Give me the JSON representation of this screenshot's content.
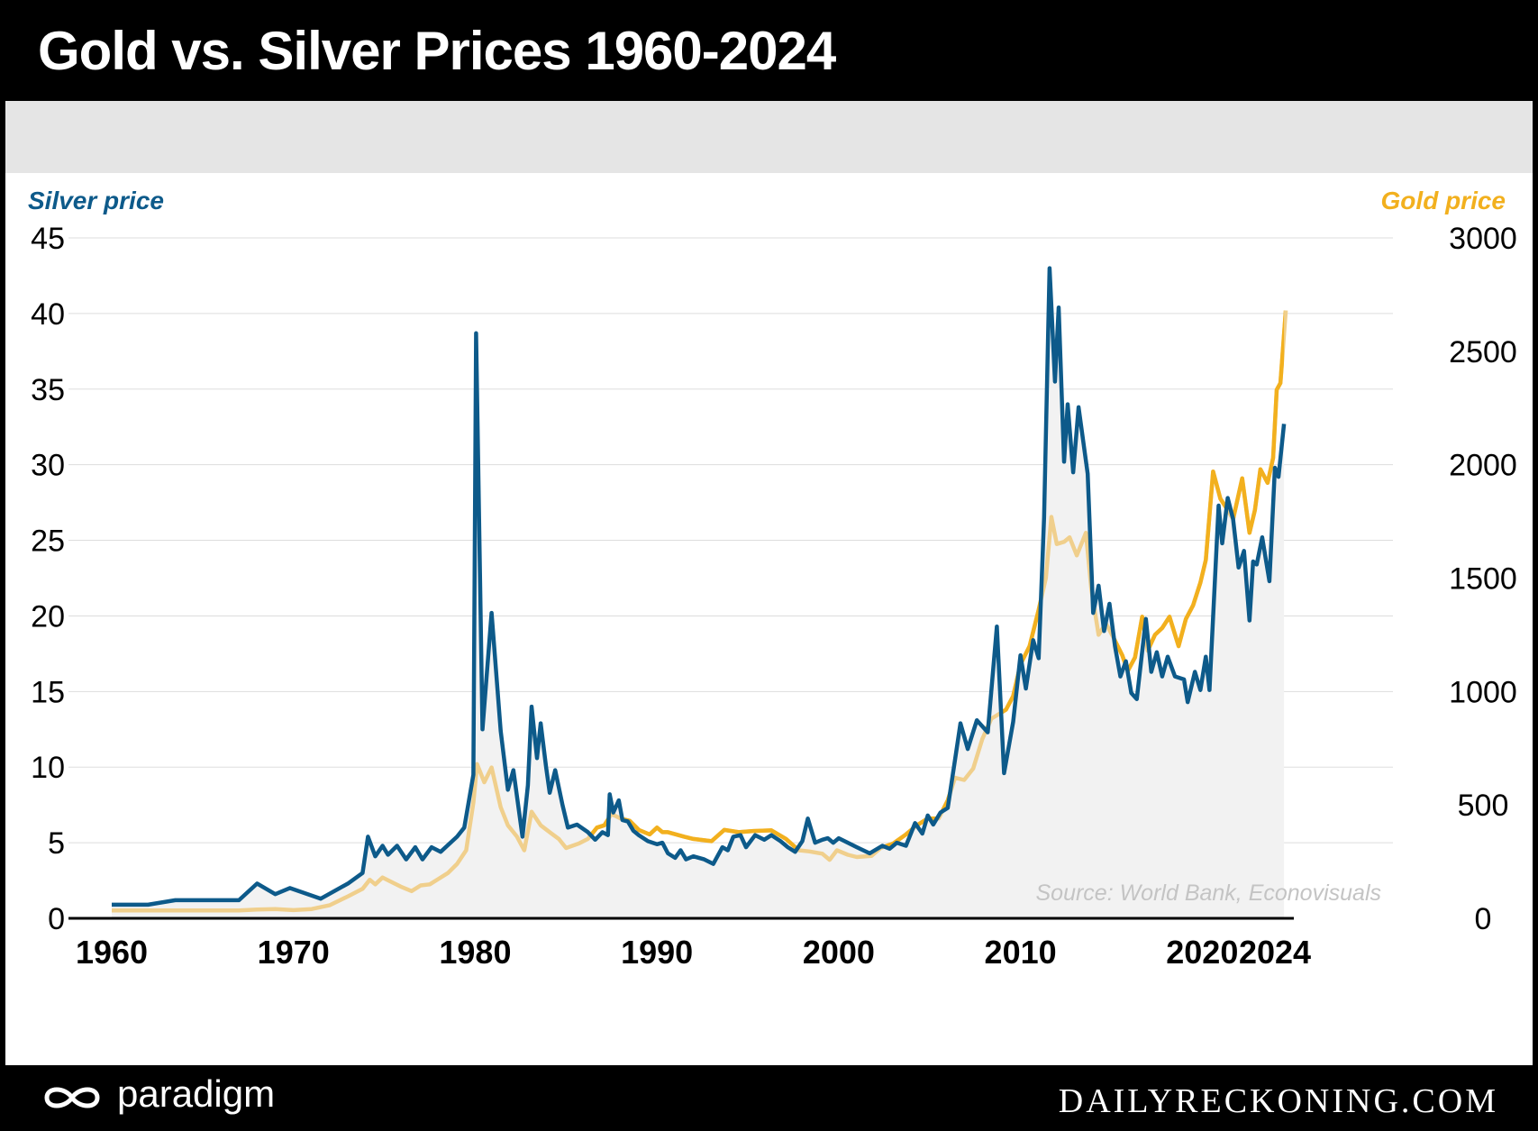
{
  "header": {
    "title": "Gold vs. Silver Prices 1960-2024"
  },
  "footer": {
    "brand": "paradigm",
    "site": "DAILYRECKONING.COM",
    "logo_icon": "infinity-loop-icon"
  },
  "colors": {
    "silver": "#0d5a8a",
    "gold": "#f2b01e",
    "gold_faded": "#f0cf8c",
    "area": "#f2f2f2",
    "grid": "#dddddd",
    "band": "#e5e5e5"
  },
  "chart_data": {
    "type": "line",
    "source": "Source: World Bank, Econovisuals",
    "y_left": {
      "label": "Silver price",
      "range": [
        0,
        45
      ],
      "ticks": [
        0,
        5,
        10,
        15,
        20,
        25,
        30,
        35,
        40,
        45
      ]
    },
    "y_right": {
      "label": "Gold price",
      "range": [
        0,
        3000
      ],
      "ticks": [
        0,
        500,
        1000,
        1500,
        2000,
        2500,
        3000
      ]
    },
    "x_axis": {
      "range": [
        1960,
        2024
      ],
      "ticks": [
        1960,
        1970,
        1980,
        1990,
        2000,
        2010,
        2020,
        2024
      ]
    },
    "grid": true,
    "series": [
      {
        "name": "Silver price",
        "axis": "left",
        "points": [
          [
            1960,
            0.9
          ],
          [
            1962,
            0.9
          ],
          [
            1963.5,
            1.2
          ],
          [
            1967,
            1.2
          ],
          [
            1968,
            2.3
          ],
          [
            1969,
            1.6
          ],
          [
            1969.8,
            2.0
          ],
          [
            1971.5,
            1.3
          ],
          [
            1973,
            2.3
          ],
          [
            1973.8,
            3.0
          ],
          [
            1974.1,
            5.4
          ],
          [
            1974.5,
            4.1
          ],
          [
            1974.9,
            4.8
          ],
          [
            1975.2,
            4.2
          ],
          [
            1975.7,
            4.8
          ],
          [
            1976.2,
            3.9
          ],
          [
            1976.7,
            4.7
          ],
          [
            1977.1,
            3.9
          ],
          [
            1977.6,
            4.7
          ],
          [
            1978.1,
            4.4
          ],
          [
            1979,
            5.4
          ],
          [
            1979.4,
            6.0
          ],
          [
            1979.9,
            9.5
          ],
          [
            1980.05,
            38.7
          ],
          [
            1980.4,
            12.5
          ],
          [
            1980.9,
            20.2
          ],
          [
            1981.4,
            12.4
          ],
          [
            1981.8,
            8.5
          ],
          [
            1982.1,
            9.8
          ],
          [
            1982.6,
            5.4
          ],
          [
            1982.9,
            8.8
          ],
          [
            1983.1,
            14.0
          ],
          [
            1983.4,
            10.6
          ],
          [
            1983.6,
            12.9
          ],
          [
            1983.9,
            10.0
          ],
          [
            1984.1,
            8.3
          ],
          [
            1984.4,
            9.8
          ],
          [
            1984.8,
            7.5
          ],
          [
            1985.1,
            6.0
          ],
          [
            1985.6,
            6.2
          ],
          [
            1986.2,
            5.7
          ],
          [
            1986.6,
            5.2
          ],
          [
            1987,
            5.7
          ],
          [
            1987.3,
            5.5
          ],
          [
            1987.4,
            8.2
          ],
          [
            1987.6,
            7.0
          ],
          [
            1987.9,
            7.8
          ],
          [
            1988.1,
            6.5
          ],
          [
            1988.4,
            6.4
          ],
          [
            1988.7,
            5.8
          ],
          [
            1989,
            5.5
          ],
          [
            1989.5,
            5.1
          ],
          [
            1990,
            4.9
          ],
          [
            1990.3,
            5.0
          ],
          [
            1990.6,
            4.3
          ],
          [
            1991,
            4.0
          ],
          [
            1991.3,
            4.5
          ],
          [
            1991.6,
            3.9
          ],
          [
            1992,
            4.1
          ],
          [
            1992.6,
            3.9
          ],
          [
            1993.1,
            3.6
          ],
          [
            1993.6,
            4.7
          ],
          [
            1993.9,
            4.5
          ],
          [
            1994.2,
            5.4
          ],
          [
            1994.6,
            5.5
          ],
          [
            1994.9,
            4.7
          ],
          [
            1995.4,
            5.5
          ],
          [
            1995.9,
            5.2
          ],
          [
            1996.3,
            5.5
          ],
          [
            1996.8,
            5.1
          ],
          [
            1997.2,
            4.7
          ],
          [
            1997.6,
            4.4
          ],
          [
            1998,
            5.1
          ],
          [
            1998.3,
            6.6
          ],
          [
            1998.7,
            5.0
          ],
          [
            1999.1,
            5.2
          ],
          [
            1999.4,
            5.3
          ],
          [
            1999.7,
            5.0
          ],
          [
            2000,
            5.3
          ],
          [
            2000.5,
            5.0
          ],
          [
            2001,
            4.7
          ],
          [
            2001.7,
            4.3
          ],
          [
            2002.4,
            4.8
          ],
          [
            2002.8,
            4.6
          ],
          [
            2003.2,
            5.0
          ],
          [
            2003.7,
            4.8
          ],
          [
            2004.2,
            6.3
          ],
          [
            2004.6,
            5.6
          ],
          [
            2004.9,
            6.8
          ],
          [
            2005.2,
            6.2
          ],
          [
            2005.6,
            7.0
          ],
          [
            2006,
            7.3
          ],
          [
            2006.4,
            10.5
          ],
          [
            2006.7,
            12.9
          ],
          [
            2007.1,
            11.2
          ],
          [
            2007.6,
            13.1
          ],
          [
            2008.2,
            12.3
          ],
          [
            2008.7,
            19.3
          ],
          [
            2009.1,
            9.6
          ],
          [
            2009.6,
            13.0
          ],
          [
            2010,
            17.4
          ],
          [
            2010.3,
            15.2
          ],
          [
            2010.7,
            18.4
          ],
          [
            2011,
            17.2
          ],
          [
            2011.3,
            26.5
          ],
          [
            2011.6,
            43.0
          ],
          [
            2011.9,
            35.5
          ],
          [
            2012.1,
            40.4
          ],
          [
            2012.4,
            30.2
          ],
          [
            2012.6,
            34.0
          ],
          [
            2012.9,
            29.5
          ],
          [
            2013.2,
            33.8
          ],
          [
            2013.7,
            29.4
          ],
          [
            2014,
            20.2
          ],
          [
            2014.3,
            22.0
          ],
          [
            2014.6,
            19.0
          ],
          [
            2014.9,
            20.8
          ],
          [
            2015.2,
            18.0
          ],
          [
            2015.5,
            16.0
          ],
          [
            2015.8,
            17.0
          ],
          [
            2016.1,
            14.9
          ],
          [
            2016.4,
            14.5
          ],
          [
            2016.9,
            19.8
          ],
          [
            2017.2,
            16.3
          ],
          [
            2017.5,
            17.6
          ],
          [
            2017.8,
            16.0
          ],
          [
            2018.1,
            17.3
          ],
          [
            2018.5,
            16.0
          ],
          [
            2019,
            15.8
          ],
          [
            2019.2,
            14.3
          ],
          [
            2019.6,
            16.3
          ],
          [
            2019.9,
            15.1
          ],
          [
            2020.2,
            17.3
          ],
          [
            2020.4,
            15.1
          ],
          [
            2020.9,
            27.3
          ],
          [
            2021.1,
            24.8
          ],
          [
            2021.4,
            27.8
          ],
          [
            2021.7,
            26.4
          ],
          [
            2022,
            23.2
          ],
          [
            2022.3,
            24.3
          ],
          [
            2022.6,
            19.7
          ],
          [
            2022.8,
            23.6
          ],
          [
            2023,
            23.4
          ],
          [
            2023.3,
            25.2
          ],
          [
            2023.7,
            22.3
          ],
          [
            2024,
            29.8
          ],
          [
            2024.2,
            29.2
          ],
          [
            2024.5,
            32.7
          ]
        ]
      },
      {
        "name": "Gold price",
        "axis": "right",
        "points": [
          [
            1960,
            35
          ],
          [
            1967,
            35
          ],
          [
            1968,
            39
          ],
          [
            1969,
            41
          ],
          [
            1970,
            36
          ],
          [
            1971,
            41
          ],
          [
            1972,
            58
          ],
          [
            1973,
            97
          ],
          [
            1973.8,
            130
          ],
          [
            1974.2,
            170
          ],
          [
            1974.5,
            150
          ],
          [
            1974.9,
            180
          ],
          [
            1975.4,
            160
          ],
          [
            1975.9,
            140
          ],
          [
            1976.5,
            120
          ],
          [
            1977,
            145
          ],
          [
            1977.5,
            150
          ],
          [
            1978,
            175
          ],
          [
            1978.5,
            200
          ],
          [
            1979,
            240
          ],
          [
            1979.5,
            300
          ],
          [
            1979.9,
            510
          ],
          [
            1980.1,
            680
          ],
          [
            1980.5,
            600
          ],
          [
            1980.9,
            665
          ],
          [
            1981.4,
            490
          ],
          [
            1981.8,
            410
          ],
          [
            1982.3,
            360
          ],
          [
            1982.7,
            300
          ],
          [
            1983.1,
            470
          ],
          [
            1983.6,
            410
          ],
          [
            1984.1,
            380
          ],
          [
            1984.6,
            350
          ],
          [
            1985,
            310
          ],
          [
            1985.7,
            330
          ],
          [
            1986.2,
            350
          ],
          [
            1986.7,
            400
          ],
          [
            1987.1,
            410
          ],
          [
            1987.5,
            460
          ],
          [
            1988,
            440
          ],
          [
            1988.5,
            430
          ],
          [
            1989,
            390
          ],
          [
            1989.6,
            370
          ],
          [
            1990,
            400
          ],
          [
            1990.3,
            380
          ],
          [
            1990.6,
            380
          ],
          [
            1991.5,
            360
          ],
          [
            1992,
            350
          ],
          [
            1993,
            340
          ],
          [
            1993.7,
            390
          ],
          [
            1994.5,
            380
          ],
          [
            1995.3,
            385
          ],
          [
            1996.3,
            388
          ],
          [
            1997.1,
            350
          ],
          [
            1997.8,
            300
          ],
          [
            1998.4,
            295
          ],
          [
            1999.1,
            285
          ],
          [
            1999.5,
            258
          ],
          [
            1999.9,
            300
          ],
          [
            2000.5,
            280
          ],
          [
            2001,
            270
          ],
          [
            2001.8,
            275
          ],
          [
            2002.3,
            310
          ],
          [
            2003,
            330
          ],
          [
            2003.7,
            370
          ],
          [
            2004.3,
            410
          ],
          [
            2004.9,
            440
          ],
          [
            2005.5,
            440
          ],
          [
            2006,
            520
          ],
          [
            2006.4,
            620
          ],
          [
            2006.9,
            610
          ],
          [
            2007.4,
            660
          ],
          [
            2007.9,
            790
          ],
          [
            2008.4,
            880
          ],
          [
            2008.8,
            900
          ],
          [
            2009.2,
            920
          ],
          [
            2009.6,
            980
          ],
          [
            2010,
            1120
          ],
          [
            2010.5,
            1200
          ],
          [
            2011,
            1360
          ],
          [
            2011.4,
            1500
          ],
          [
            2011.7,
            1770
          ],
          [
            2012,
            1650
          ],
          [
            2012.4,
            1660
          ],
          [
            2012.7,
            1680
          ],
          [
            2013.1,
            1600
          ],
          [
            2013.6,
            1700
          ],
          [
            2013.9,
            1450
          ],
          [
            2014.3,
            1250
          ],
          [
            2014.7,
            1300
          ],
          [
            2015.1,
            1240
          ],
          [
            2015.6,
            1160
          ],
          [
            2015.9,
            1090
          ],
          [
            2016.3,
            1150
          ],
          [
            2016.7,
            1330
          ],
          [
            2017,
            1180
          ],
          [
            2017.4,
            1250
          ],
          [
            2017.8,
            1280
          ],
          [
            2018.2,
            1330
          ],
          [
            2018.7,
            1200
          ],
          [
            2019.1,
            1320
          ],
          [
            2019.5,
            1380
          ],
          [
            2019.9,
            1480
          ],
          [
            2020.2,
            1580
          ],
          [
            2020.6,
            1970
          ],
          [
            2021,
            1850
          ],
          [
            2021.4,
            1800
          ],
          [
            2021.7,
            1760
          ],
          [
            2022.2,
            1940
          ],
          [
            2022.6,
            1700
          ],
          [
            2022.9,
            1800
          ],
          [
            2023.2,
            1980
          ],
          [
            2023.6,
            1920
          ],
          [
            2023.9,
            2030
          ],
          [
            2024.1,
            2330
          ],
          [
            2024.3,
            2360
          ],
          [
            2024.6,
            2680
          ]
        ]
      }
    ]
  }
}
